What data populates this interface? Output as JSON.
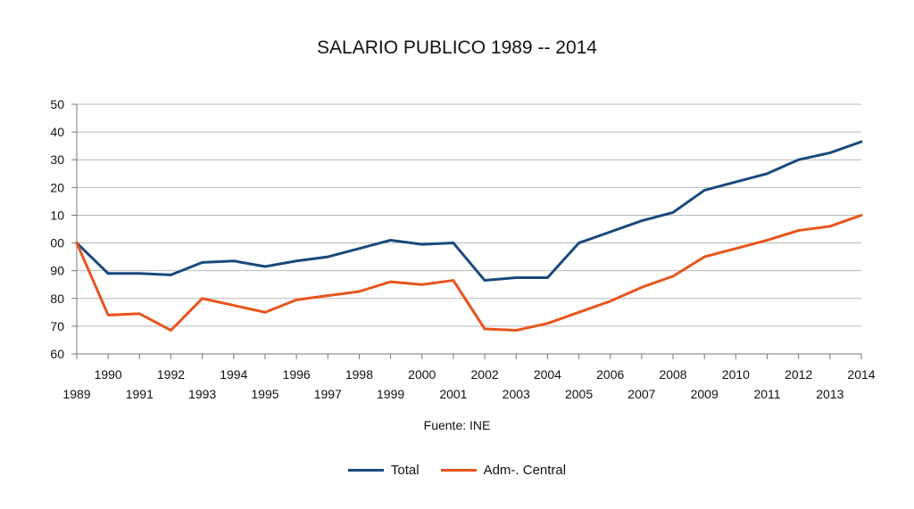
{
  "chart_data": {
    "type": "line",
    "title": "SALARIO PUBLICO 1989  --  2014",
    "source": "Fuente: INE",
    "x": [
      1989,
      1990,
      1991,
      1992,
      1993,
      1994,
      1995,
      1996,
      1997,
      1998,
      1999,
      2000,
      2001,
      2002,
      2003,
      2004,
      2005,
      2006,
      2007,
      2008,
      2009,
      2010,
      2011,
      2012,
      2013,
      2014
    ],
    "x_labels_top": [
      "1990",
      "1992",
      "1994",
      "1996",
      "1998",
      "2000",
      "2002",
      "2004",
      "2006",
      "2008",
      "2010",
      "2012",
      "2014"
    ],
    "x_labels_bottom": [
      "1989",
      "1991",
      "1993",
      "1995",
      "1997",
      "1999",
      "2001",
      "2003",
      "2005",
      "2007",
      "2009",
      "2011",
      "2013"
    ],
    "ylim": [
      60,
      150
    ],
    "y_tick_labels": [
      "60",
      "70",
      "80",
      "90",
      "00",
      "10",
      "20",
      "30",
      "40",
      "50"
    ],
    "grid": true,
    "legend_position": "bottom",
    "series": [
      {
        "name": "Total",
        "color": "#174a7c",
        "values": [
          100,
          89,
          89,
          88.5,
          93,
          93.5,
          91.5,
          93.5,
          95,
          98,
          101,
          99.5,
          100,
          86.5,
          87.5,
          87.5,
          100,
          104,
          108,
          111,
          119,
          122,
          125,
          130,
          132.5,
          136.5
        ]
      },
      {
        "name": "Adm-. Central",
        "color": "#e8541c",
        "values": [
          100,
          74,
          74.5,
          68.5,
          80,
          77.5,
          75,
          79.5,
          81,
          82.5,
          86,
          85,
          86.5,
          69,
          68.5,
          71,
          75,
          79,
          84,
          88,
          95,
          98,
          101,
          104.5,
          106,
          110
        ]
      }
    ]
  }
}
